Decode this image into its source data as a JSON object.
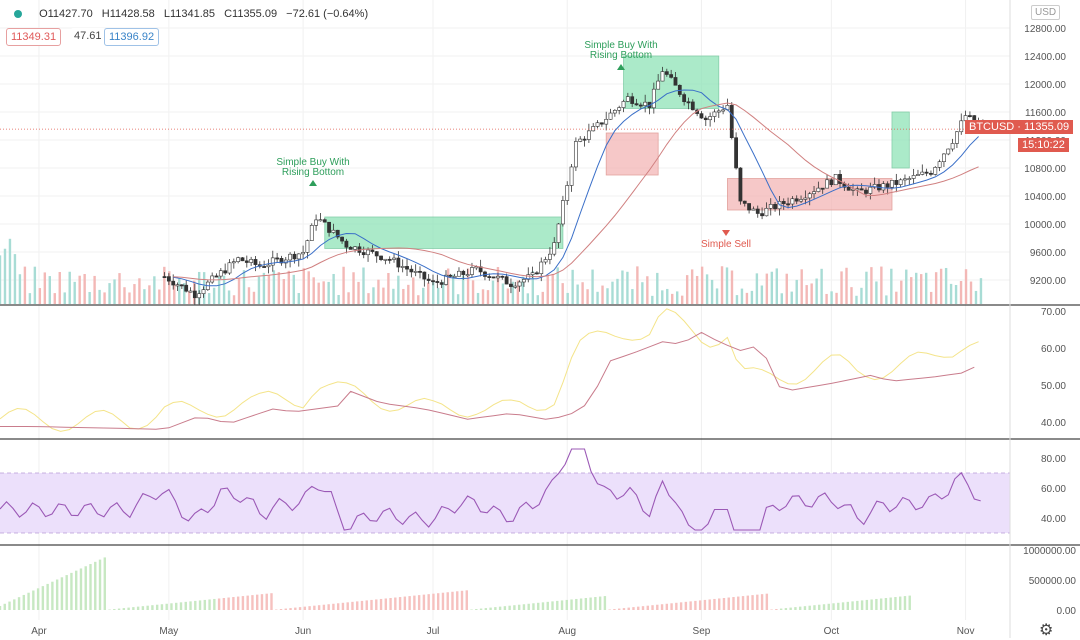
{
  "header": {
    "open": "O11427.70",
    "high": "H11428.58",
    "low": "L11341.85",
    "close": "C11355.09",
    "change": "−72.61 (−0.64%)",
    "ind_left": "11349.31",
    "ind_mid": "47.61",
    "ind_right": "11396.92",
    "currency": "USD"
  },
  "price_tag": {
    "symbol_price": "BTCUSD · 11355.09",
    "countdown": "15:10:22"
  },
  "colors": {
    "up": "#26a69a",
    "down": "#ef5350",
    "zone_green": "#8fe3b8",
    "zone_red": "#f3b6b6",
    "rsi_band": "#ece0fb",
    "rsi_line": "#9b59b6"
  },
  "chart_data": [
    {
      "type": "candlestick",
      "title": "BTCUSD",
      "y_ticks": [
        "12800.00",
        "12400.00",
        "12000.00",
        "11600.00",
        "11200.00",
        "10800.00",
        "10400.00",
        "10000.00",
        "9600.00",
        "9200.00"
      ],
      "x_ticks": [
        "Apr",
        "May",
        "Jun",
        "Jul",
        "Aug",
        "Sep",
        "Oct",
        "Nov"
      ],
      "annotations": [
        "Simple Buy With Rising Bottom",
        "Simple Buy With Rising Bottom",
        "Simple Sell"
      ],
      "last": 11355.09
    },
    {
      "type": "line",
      "y_ticks": [
        "70.00",
        "60.00",
        "50.00",
        "40.00"
      ]
    },
    {
      "type": "line",
      "y_ticks": [
        "80.00",
        "60.00",
        "40.00"
      ]
    },
    {
      "type": "bar",
      "y_ticks": [
        "1000000.00",
        "500000.00",
        "0.00"
      ]
    }
  ]
}
